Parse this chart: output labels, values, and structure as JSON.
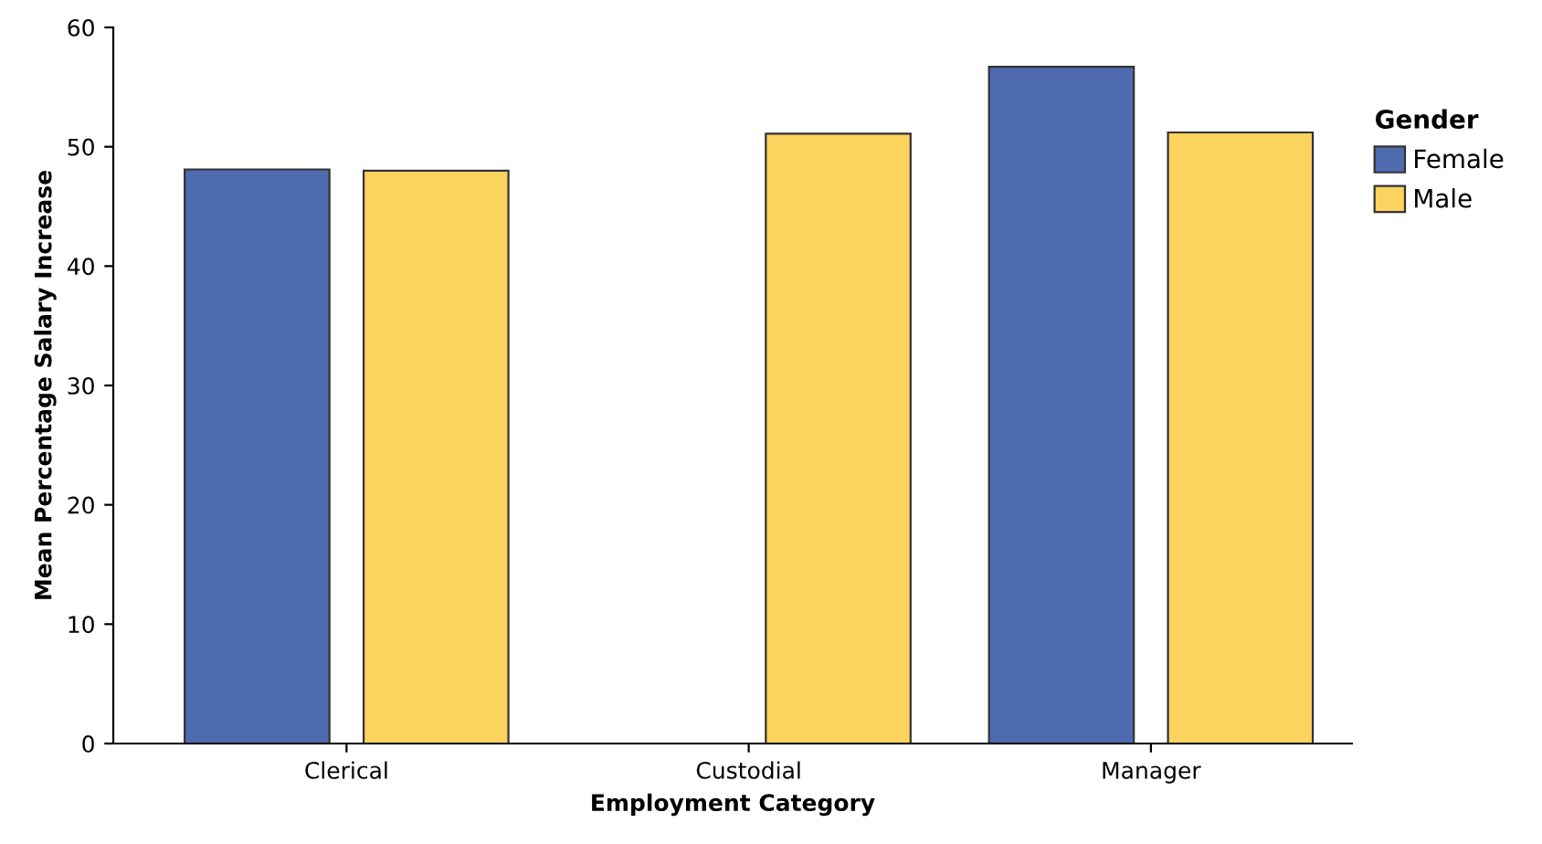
{
  "chart_data": {
    "type": "bar",
    "xlabel": "Employment Category",
    "ylabel": "Mean Percentage Salary Increase",
    "legend_title": "Gender",
    "categories": [
      "Clerical",
      "Custodial",
      "Manager"
    ],
    "series": [
      {
        "name": "Female",
        "color": "#4f6bb0",
        "values": [
          48.1,
          null,
          56.7
        ]
      },
      {
        "name": "Male",
        "color": "#fcd35f",
        "values": [
          48.0,
          51.1,
          51.2
        ]
      }
    ],
    "ylim": [
      0,
      60
    ],
    "yticks": [
      0,
      10,
      20,
      30,
      40,
      50,
      60
    ],
    "grid": false,
    "legend": "top right"
  }
}
